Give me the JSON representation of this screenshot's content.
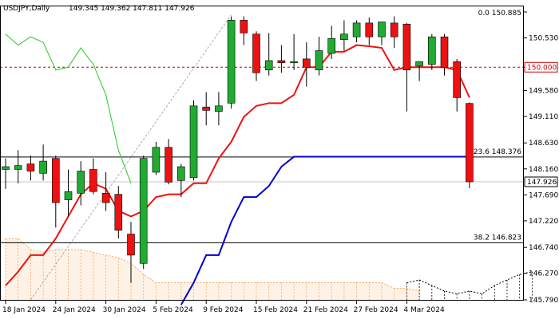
{
  "header": {
    "symbol": "USDJPY,Daily",
    "ohlc": "149.345 149.362 147.811 147.926"
  },
  "chart_data": {
    "type": "candlestick",
    "symbol": "USDJPY",
    "timeframe": "Daily",
    "ylim": [
      145.79,
      151.0
    ],
    "y_ticks": [
      151.0,
      150.53,
      150.0,
      149.58,
      149.11,
      148.63,
      148.16,
      147.69,
      147.22,
      146.74,
      146.27,
      145.79
    ],
    "y_tick_labels": [
      "",
      "150.530",
      "",
      "149.580",
      "149.110",
      "148.630",
      "148.160",
      "147.690",
      "147.220",
      "146.740",
      "146.270",
      "145.790"
    ],
    "x_labels": [
      {
        "index": 0,
        "label": "18 Jan 2024"
      },
      {
        "index": 4,
        "label": "24 Jan 2024"
      },
      {
        "index": 8,
        "label": "30 Jan 2024"
      },
      {
        "index": 12,
        "label": "5 Feb 2024"
      },
      {
        "index": 16,
        "label": "9 Feb 2024"
      },
      {
        "index": 20,
        "label": "15 Feb 2024"
      },
      {
        "index": 24,
        "label": "21 Feb 2024"
      },
      {
        "index": 28,
        "label": "27 Feb 2024"
      },
      {
        "index": 32,
        "label": "4 Mar 2024"
      }
    ],
    "candles": [
      {
        "o": 148.15,
        "h": 148.35,
        "l": 147.8,
        "c": 148.2
      },
      {
        "o": 148.15,
        "h": 148.5,
        "l": 147.9,
        "c": 148.22
      },
      {
        "o": 148.25,
        "h": 148.4,
        "l": 147.95,
        "c": 148.12
      },
      {
        "o": 148.08,
        "h": 148.6,
        "l": 147.95,
        "c": 148.3
      },
      {
        "o": 148.35,
        "h": 148.4,
        "l": 147.1,
        "c": 147.55
      },
      {
        "o": 147.6,
        "h": 148.15,
        "l": 147.3,
        "c": 147.75
      },
      {
        "o": 147.72,
        "h": 148.3,
        "l": 147.5,
        "c": 148.12
      },
      {
        "o": 148.15,
        "h": 148.35,
        "l": 147.7,
        "c": 147.75
      },
      {
        "o": 147.72,
        "h": 148.1,
        "l": 147.4,
        "c": 147.55
      },
      {
        "o": 147.7,
        "h": 147.85,
        "l": 146.9,
        "c": 147.05
      },
      {
        "o": 146.98,
        "h": 147.2,
        "l": 146.1,
        "c": 146.6
      },
      {
        "o": 146.45,
        "h": 148.4,
        "l": 146.35,
        "c": 148.35
      },
      {
        "o": 148.1,
        "h": 148.65,
        "l": 148.05,
        "c": 148.55
      },
      {
        "o": 148.55,
        "h": 148.7,
        "l": 147.88,
        "c": 147.92
      },
      {
        "o": 147.95,
        "h": 148.25,
        "l": 147.65,
        "c": 148.2
      },
      {
        "o": 148.0,
        "h": 149.4,
        "l": 147.95,
        "c": 149.3
      },
      {
        "o": 149.28,
        "h": 149.55,
        "l": 148.95,
        "c": 149.22
      },
      {
        "o": 149.2,
        "h": 149.55,
        "l": 148.95,
        "c": 149.3
      },
      {
        "o": 149.35,
        "h": 150.92,
        "l": 149.25,
        "c": 150.85
      },
      {
        "o": 150.85,
        "h": 150.92,
        "l": 150.4,
        "c": 150.62
      },
      {
        "o": 150.6,
        "h": 150.65,
        "l": 149.75,
        "c": 149.9
      },
      {
        "o": 149.95,
        "h": 150.62,
        "l": 149.85,
        "c": 150.12
      },
      {
        "o": 150.12,
        "h": 150.4,
        "l": 149.9,
        "c": 150.08
      },
      {
        "o": 150.08,
        "h": 150.6,
        "l": 149.95,
        "c": 150.1
      },
      {
        "o": 150.15,
        "h": 150.45,
        "l": 149.65,
        "c": 150.0
      },
      {
        "o": 149.95,
        "h": 150.55,
        "l": 149.85,
        "c": 150.3
      },
      {
        "o": 150.25,
        "h": 150.75,
        "l": 150.15,
        "c": 150.52
      },
      {
        "o": 150.5,
        "h": 150.85,
        "l": 150.3,
        "c": 150.6
      },
      {
        "o": 150.55,
        "h": 150.85,
        "l": 150.45,
        "c": 150.8
      },
      {
        "o": 150.8,
        "h": 150.9,
        "l": 150.4,
        "c": 150.55
      },
      {
        "o": 150.55,
        "h": 150.8,
        "l": 150.4,
        "c": 150.82
      },
      {
        "o": 150.8,
        "h": 150.92,
        "l": 150.35,
        "c": 150.55
      },
      {
        "o": 150.78,
        "h": 150.8,
        "l": 149.2,
        "c": 149.95
      },
      {
        "o": 150.02,
        "h": 150.08,
        "l": 149.75,
        "c": 150.1
      },
      {
        "o": 150.05,
        "h": 150.6,
        "l": 149.95,
        "c": 150.55
      },
      {
        "o": 150.55,
        "h": 150.6,
        "l": 149.85,
        "c": 150.0
      },
      {
        "o": 150.1,
        "h": 150.15,
        "l": 149.2,
        "c": 149.45
      },
      {
        "o": 149.345,
        "h": 149.362,
        "l": 147.811,
        "c": 147.926
      }
    ],
    "red_line": [
      146.05,
      146.3,
      146.6,
      146.6,
      146.9,
      147.3,
      147.7,
      147.9,
      147.8,
      147.4,
      147.3,
      147.4,
      147.65,
      147.7,
      147.7,
      147.9,
      147.9,
      148.35,
      148.65,
      149.1,
      149.3,
      149.35,
      149.35,
      149.5,
      150.0,
      150.0,
      150.28,
      150.28,
      150.4,
      150.38,
      150.35,
      149.95,
      150.0,
      150.0,
      150.0,
      150.0,
      149.95,
      149.45
    ],
    "blue_line": [
      null,
      null,
      null,
      null,
      null,
      null,
      null,
      null,
      null,
      null,
      null,
      null,
      null,
      null,
      145.7,
      146.1,
      146.6,
      146.6,
      147.2,
      147.65,
      147.65,
      147.85,
      148.2,
      148.38,
      148.38,
      148.38,
      148.38,
      148.38,
      148.38,
      148.38,
      148.38,
      148.38,
      148.38,
      148.38,
      148.38,
      148.38,
      148.38,
      148.38
    ],
    "green_line": [
      {
        "i": 0,
        "v": 150.6
      },
      {
        "i": 1,
        "v": 150.4
      },
      {
        "i": 2,
        "v": 150.55
      },
      {
        "i": 3,
        "v": 150.45
      },
      {
        "i": 4,
        "v": 149.95
      },
      {
        "i": 5,
        "v": 150.0
      },
      {
        "i": 6,
        "v": 150.35
      },
      {
        "i": 7,
        "v": 150.05
      },
      {
        "i": 8,
        "v": 149.5
      },
      {
        "i": 9,
        "v": 148.5
      },
      {
        "i": 10,
        "v": 147.9
      }
    ],
    "cloud_top": [
      146.9,
      146.9,
      146.7,
      146.65,
      146.7,
      146.7,
      146.7,
      146.65,
      146.6,
      146.55,
      146.45,
      146.25,
      146.1,
      146.1,
      146.1,
      146.1,
      146.1,
      146.1,
      146.1,
      146.1,
      146.1,
      146.1,
      146.1,
      146.1,
      146.1,
      146.1,
      146.1,
      146.1,
      146.1,
      146.1,
      146.1,
      146.0,
      146.0,
      145.95
    ],
    "cloud_bottom": [
      145.79,
      145.79,
      145.79,
      145.79,
      145.79,
      145.79,
      145.79,
      145.79,
      145.79,
      145.79,
      145.79,
      145.79,
      145.79,
      145.79,
      145.79,
      145.79,
      145.79,
      145.79,
      145.79,
      145.79,
      145.79,
      145.79,
      145.79,
      145.79,
      145.79,
      145.79,
      145.79,
      145.79,
      145.79,
      145.79,
      145.79,
      145.79,
      145.79,
      145.79
    ],
    "future_cloud": [
      {
        "i": 32,
        "v": 146.1
      },
      {
        "i": 33,
        "v": 146.15
      },
      {
        "i": 34,
        "v": 146.05
      },
      {
        "i": 35,
        "v": 145.95
      },
      {
        "i": 36,
        "v": 145.9
      },
      {
        "i": 37,
        "v": 145.95
      },
      {
        "i": 38,
        "v": 145.9
      },
      {
        "i": 39,
        "v": 146.05
      },
      {
        "i": 40,
        "v": 146.15
      },
      {
        "i": 41,
        "v": 146.25
      },
      {
        "i": 42,
        "v": 146.3
      }
    ],
    "fib_levels": [
      {
        "price": 150.885,
        "label": "0.0 150.885",
        "style": "none"
      },
      {
        "price": 148.376,
        "label": "23.6 148.376",
        "style": "solid"
      },
      {
        "price": 146.823,
        "label": "38.2 146.823",
        "style": "solid"
      }
    ],
    "horizontal_lines": [
      {
        "price": 150.0,
        "style": "dashed",
        "color": "#cc0000"
      },
      {
        "price": 147.926,
        "style": "solid",
        "color": "#c8c8c8"
      }
    ],
    "price_tags": [
      {
        "price": 150.885,
        "text": "",
        "bg": "#ffffff",
        "fg": "#000000"
      },
      {
        "price": 150.0,
        "text": "150.000",
        "bg": "#ffffff",
        "fg": "#cc0000",
        "border": "#cc0000"
      },
      {
        "price": 147.926,
        "text": "147.926",
        "bg": "#ffffff",
        "fg": "#000000",
        "border": "#000000"
      }
    ],
    "colors": {
      "bull": "#22aa33",
      "bear": "#ee1111",
      "red_line": "#ee1111",
      "blue_line": "#0000cc",
      "green_line": "#22cc22",
      "cloud": "#f4a460",
      "trend": "#999999"
    }
  }
}
